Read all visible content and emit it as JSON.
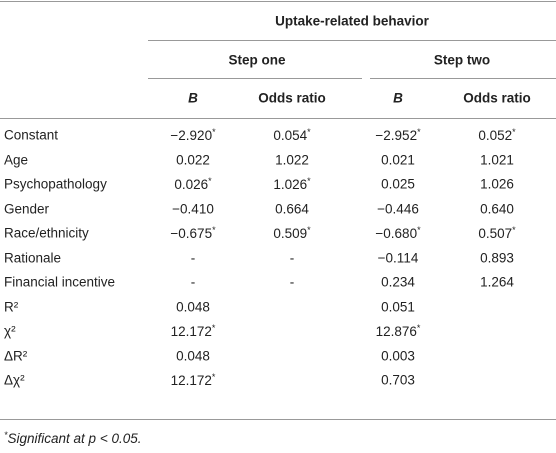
{
  "header": {
    "title": "Uptake-related behavior",
    "steps": [
      "Step one",
      "Step two"
    ],
    "columns": [
      "B",
      "Odds ratio",
      "B",
      "Odds ratio"
    ]
  },
  "table": {
    "rows": [
      [
        "Constant",
        "−2.920*",
        "0.054*",
        "−2.952*",
        "0.052*"
      ],
      [
        "Age",
        "0.022",
        "1.022",
        "0.021",
        "1.021"
      ],
      [
        "Psychopathology",
        "0.026*",
        "1.026*",
        "0.025",
        "1.026"
      ],
      [
        "Gender",
        "−0.410",
        "0.664",
        "−0.446",
        "0.640"
      ],
      [
        "Race/ethnicity",
        "−0.675*",
        "0.509*",
        "−0.680*",
        "0.507*"
      ],
      [
        "Rationale",
        "-",
        "-",
        "−0.114",
        "0.893"
      ],
      [
        "Financial incentive",
        "-",
        "-",
        "0.234",
        "1.264"
      ],
      [
        "R²",
        "0.048",
        null,
        "0.051",
        null
      ],
      [
        "χ²",
        "12.172*",
        null,
        "12.876*",
        null
      ],
      [
        "ΔR²",
        "0.048",
        null,
        "0.003",
        null
      ],
      [
        "Δχ²",
        "12.172*",
        null,
        "0.703",
        null
      ]
    ]
  },
  "footnote": "*Significant at p < 0.05."
}
